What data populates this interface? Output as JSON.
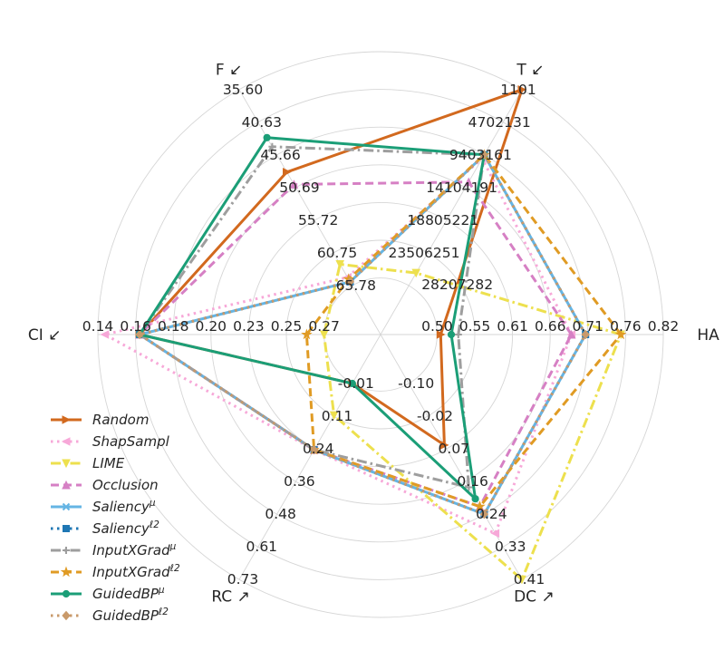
{
  "chart_data": {
    "type": "radar",
    "axes": [
      {
        "id": "HA",
        "label": "HA ↗",
        "ticks": [
          "0.50",
          "0.55",
          "0.61",
          "0.66",
          "0.71",
          "0.76",
          "0.82"
        ]
      },
      {
        "id": "T",
        "label": "T ↙",
        "ticks": [
          "23506251",
          "18805221",
          "14104191",
          "9403161",
          "4702131",
          "1101"
        ]
      },
      {
        "id": "F",
        "label": "F ↙",
        "ticks": [
          "65.78",
          "60.75",
          "55.72",
          "50.69",
          "45.66",
          "40.63",
          "35.60"
        ]
      },
      {
        "id": "CI",
        "label": "CI ↙",
        "ticks": [
          "0.27",
          "0.25",
          "0.23",
          "0.20",
          "0.18",
          "0.16",
          "0.14"
        ]
      },
      {
        "id": "RC",
        "label": "RC ↗",
        "ticks": [
          "-0.01",
          "0.11",
          "0.24",
          "0.36",
          "0.48",
          "0.61",
          "0.73"
        ]
      },
      {
        "id": "DC",
        "label": "DC ↗",
        "ticks": [
          "-0.10",
          "-0.02",
          "0.07",
          "0.16",
          "0.24",
          "0.33",
          "0.41"
        ]
      }
    ],
    "center_label": "28207282",
    "axis_ranges": {
      "HA": [
        0.5,
        0.82
      ],
      "T": [
        28207282,
        1101
      ],
      "F": [
        65.78,
        35.6
      ],
      "CI": [
        0.27,
        0.14
      ],
      "RC": [
        -0.01,
        0.73
      ],
      "DC": [
        -0.1,
        0.41
      ]
    },
    "grid": true,
    "legend_position": "lower-left",
    "series": [
      {
        "name": "Random",
        "legend": "Random",
        "color": "#d2691e",
        "dash": "solid",
        "marker": "tri-right",
        "values": [
          0.505,
          1101,
          48.3,
          0.164,
          -0.01,
          0.06
        ]
      },
      {
        "name": "ShapSampl",
        "legend": "ShapSampl",
        "color": "#f7a8d8",
        "dash": "dotted",
        "marker": "tri-left",
        "values": [
          0.69,
          9900000,
          64.5,
          0.144,
          0.24,
          0.29
        ]
      },
      {
        "name": "LIME",
        "legend": "LIME",
        "color": "#ede04e",
        "dash": "dashdot",
        "marker": "tri-down",
        "values": [
          0.76,
          26400000,
          62.5,
          0.27,
          0.11,
          0.41
        ]
      },
      {
        "name": "Occlusion",
        "legend": "Occlusion",
        "color": "#d680c4",
        "dash": "dashed",
        "marker": "tri-up",
        "values": [
          0.69,
          13300000,
          50.2,
          0.164,
          0.24,
          0.22
        ]
      },
      {
        "name": "Saliency^μ",
        "legend": "Saliency",
        "legend_sup": "μ",
        "color": "#65b5e4",
        "dash": "solid",
        "marker": "x",
        "values": [
          0.71,
          9400000,
          65.2,
          0.164,
          0.24,
          0.24
        ]
      },
      {
        "name": "Saliency^ℓ2",
        "legend": "Saliency",
        "legend_sup": "ℓ2",
        "color": "#1f77b4",
        "dash": "dotted",
        "marker": "square",
        "values": [
          0.71,
          9400000,
          65.2,
          0.164,
          0.24,
          0.24
        ]
      },
      {
        "name": "InputXGrad^μ",
        "legend": "InputXGrad",
        "legend_sup": "μ",
        "color": "#9e9e9e",
        "dash": "dashdot",
        "marker": "plus",
        "values": [
          0.53,
          9400000,
          44.4,
          0.164,
          0.24,
          0.17
        ]
      },
      {
        "name": "InputXGrad^ℓ2",
        "legend": "InputXGrad",
        "legend_sup": "ℓ2",
        "color": "#e09b24",
        "dash": "dashed",
        "marker": "star",
        "values": [
          0.76,
          9400000,
          64.8,
          0.26,
          0.24,
          0.22
        ]
      },
      {
        "name": "GuidedBP^μ",
        "legend": "GuidedBP",
        "legend_sup": "μ",
        "color": "#1b9e77",
        "dash": "solid",
        "marker": "circle",
        "values": [
          0.52,
          9400000,
          43.0,
          0.164,
          -0.01,
          0.2
        ]
      },
      {
        "name": "GuidedBP^ℓ2",
        "legend": "GuidedBP",
        "legend_sup": "ℓ2",
        "color": "#c99a6b",
        "dash": "dotted",
        "marker": "diamond",
        "values": [
          0.71,
          9400000,
          65.2,
          0.164,
          0.24,
          0.24
        ]
      }
    ]
  }
}
